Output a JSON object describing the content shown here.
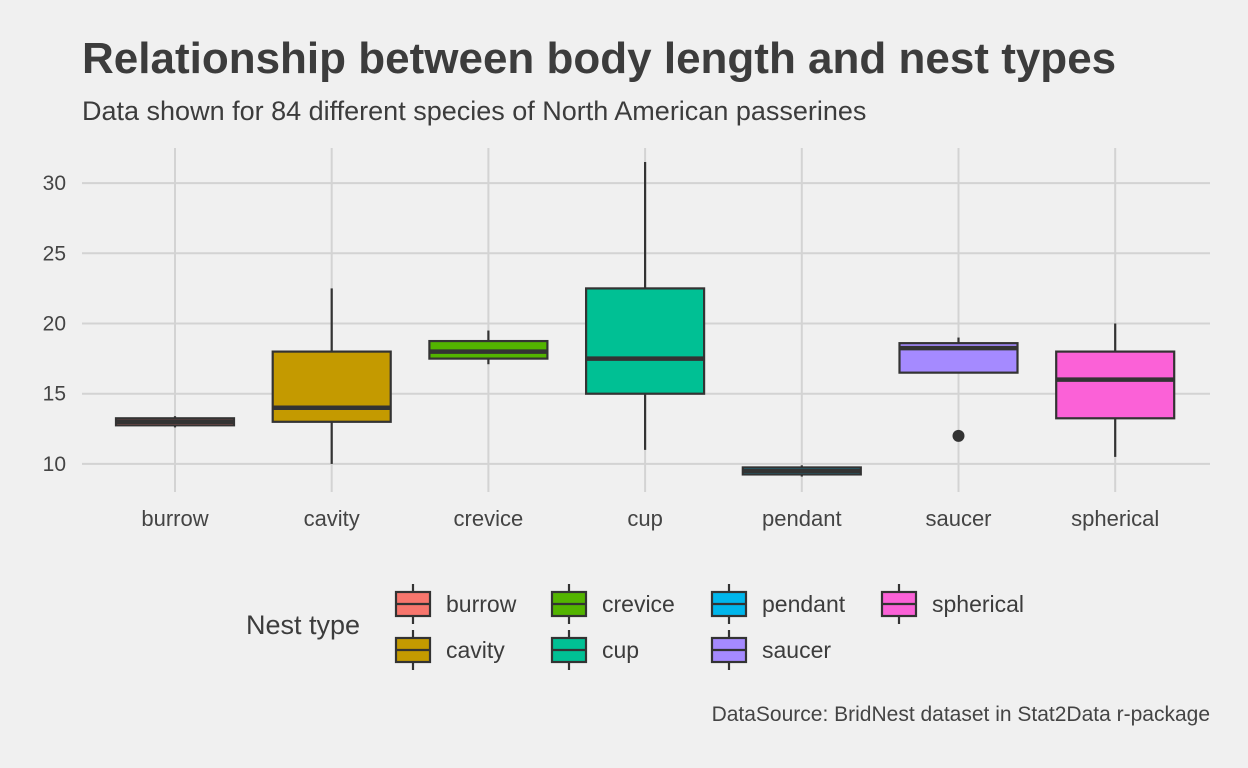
{
  "chart_data": {
    "type": "box",
    "title": "Relationship between body length and nest types",
    "subtitle": "Data shown for 84 different species of North American passerines",
    "caption": "DataSource: BridNest dataset in Stat2Data r-package",
    "xlabel": "",
    "ylabel": "",
    "ylim": [
      8,
      32.5
    ],
    "yticks": [
      10,
      15,
      20,
      25,
      30
    ],
    "grid": true,
    "legend_title": "Nest type",
    "legend_position": "bottom",
    "categories": [
      "burrow",
      "cavity",
      "crevice",
      "cup",
      "pendant",
      "saucer",
      "spherical"
    ],
    "colors": {
      "burrow": "#F8766D",
      "cavity": "#C49A00",
      "crevice": "#53B400",
      "cup": "#00C094",
      "pendant": "#00B6EB",
      "saucer": "#A58AFF",
      "spherical": "#FB61D7",
      "outline": "#333333"
    },
    "boxes": [
      {
        "category": "burrow",
        "min": 12.6,
        "q1": 12.75,
        "median": 13.0,
        "q3": 13.25,
        "max": 13.4,
        "outliers": []
      },
      {
        "category": "cavity",
        "min": 10.0,
        "q1": 13.0,
        "median": 14.0,
        "q3": 18.0,
        "max": 22.5,
        "outliers": []
      },
      {
        "category": "crevice",
        "min": 17.1,
        "q1": 17.5,
        "median": 18.0,
        "q3": 18.75,
        "max": 19.5,
        "outliers": []
      },
      {
        "category": "cup",
        "min": 11.0,
        "q1": 15.0,
        "median": 17.5,
        "q3": 22.5,
        "max": 31.5,
        "outliers": []
      },
      {
        "category": "pendant",
        "min": 9.1,
        "q1": 9.25,
        "median": 9.5,
        "q3": 9.75,
        "max": 9.9,
        "outliers": []
      },
      {
        "category": "saucer",
        "min": 16.5,
        "q1": 16.5,
        "median": 18.25,
        "q3": 18.6,
        "max": 19.0,
        "outliers": [
          12.0
        ]
      },
      {
        "category": "spherical",
        "min": 10.5,
        "q1": 13.25,
        "median": 16.0,
        "q3": 18.0,
        "max": 20.0,
        "outliers": []
      }
    ],
    "legend_rows": [
      [
        "burrow",
        "crevice",
        "pendant",
        "spherical"
      ],
      [
        "cavity",
        "cup",
        "saucer"
      ]
    ]
  }
}
